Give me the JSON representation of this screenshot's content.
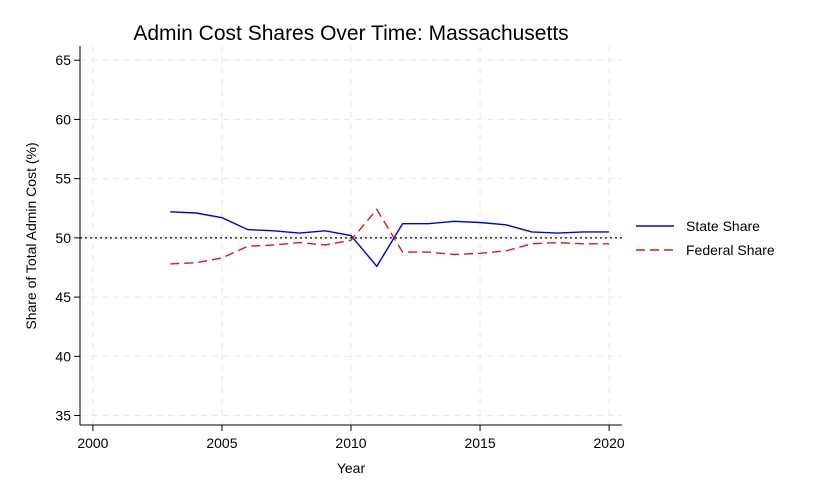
{
  "chart_data": {
    "type": "line",
    "title": "Admin Cost Shares Over Time: Massachusetts",
    "xlabel": "Year",
    "ylabel": "Share of Total Admin Cost (%)",
    "xlim": [
      1999.5,
      2020.5
    ],
    "ylim": [
      34.2,
      66.2
    ],
    "xticks": [
      2000,
      2005,
      2010,
      2015,
      2020
    ],
    "yticks": [
      35,
      40,
      45,
      50,
      55,
      60,
      65
    ],
    "grid": true,
    "legend_position": "right",
    "reference_line": {
      "y": 50,
      "style": "dotted",
      "color": "#000000"
    },
    "x": [
      2003,
      2004,
      2005,
      2006,
      2007,
      2008,
      2009,
      2010,
      2011,
      2012,
      2013,
      2014,
      2015,
      2016,
      2017,
      2018,
      2019,
      2020
    ],
    "series": [
      {
        "name": "State Share",
        "color": "#0000dd",
        "style": "solid",
        "values": [
          52.2,
          52.1,
          51.7,
          50.7,
          50.6,
          50.4,
          50.6,
          50.2,
          47.6,
          51.2,
          51.2,
          51.4,
          51.3,
          51.1,
          50.5,
          50.4,
          50.5,
          50.5
        ]
      },
      {
        "name": "Federal Share",
        "color": "#e0141e",
        "style": "dashed",
        "values": [
          47.8,
          47.9,
          48.3,
          49.3,
          49.4,
          49.6,
          49.4,
          49.8,
          52.4,
          48.8,
          48.8,
          48.6,
          48.7,
          48.9,
          49.5,
          49.6,
          49.5,
          49.5
        ]
      }
    ]
  }
}
